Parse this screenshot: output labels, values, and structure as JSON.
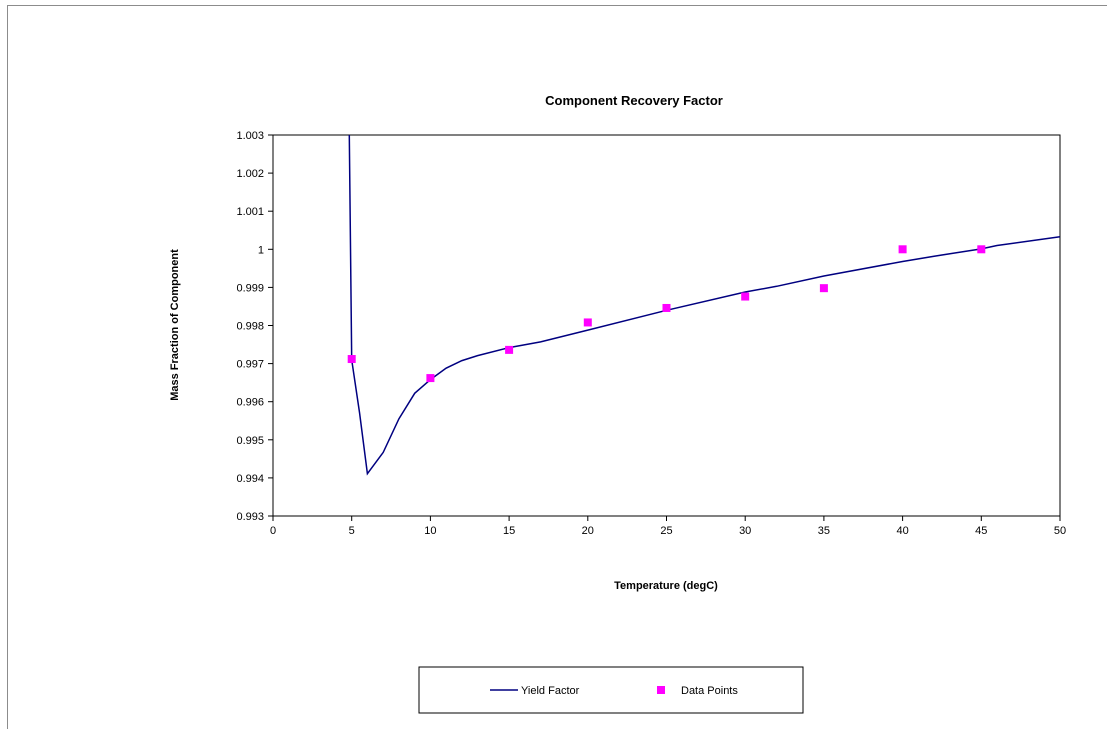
{
  "chart_data": {
    "type": "line",
    "title": "Component Recovery Factor",
    "xlabel": "Temperature (degC)",
    "ylabel": "Mass Fraction of Component",
    "xlim": [
      0,
      50
    ],
    "ylim": [
      0.993,
      1.003
    ],
    "xticks": [
      "0",
      "5",
      "10",
      "15",
      "20",
      "25",
      "30",
      "35",
      "40",
      "45",
      "50"
    ],
    "yticks": [
      "0.993",
      "0.994",
      "0.995",
      "0.996",
      "0.997",
      "0.998",
      "0.999",
      "1",
      "1.001",
      "1.002",
      "1.003"
    ],
    "grid": false,
    "legend_position": "bottom",
    "series": [
      {
        "name": "Yield Factor",
        "type": "line",
        "color": "#000080",
        "x": [
          4.85,
          5,
          5.5,
          6,
          7,
          8,
          9,
          10,
          11,
          12,
          13,
          15,
          17,
          20,
          25,
          30,
          32,
          35,
          40,
          42,
          45,
          46,
          50
        ],
        "y": [
          1.003,
          0.9971,
          0.9957,
          0.99411,
          0.99467,
          0.99555,
          0.99622,
          0.99658,
          0.99688,
          0.99708,
          0.99721,
          0.99742,
          0.99757,
          0.99788,
          0.9984,
          0.99888,
          0.99903,
          0.9993,
          0.99968,
          0.99982,
          1.00001,
          1.0001,
          1.00033
        ]
      },
      {
        "name": "Data Points",
        "type": "scatter",
        "color": "#FF00FF",
        "x": [
          5,
          10,
          15,
          20,
          25,
          30,
          35,
          40,
          45
        ],
        "y": [
          0.99712,
          0.99662,
          0.99736,
          0.99808,
          0.99846,
          0.99876,
          0.99898,
          1.0,
          1.0
        ]
      }
    ]
  }
}
